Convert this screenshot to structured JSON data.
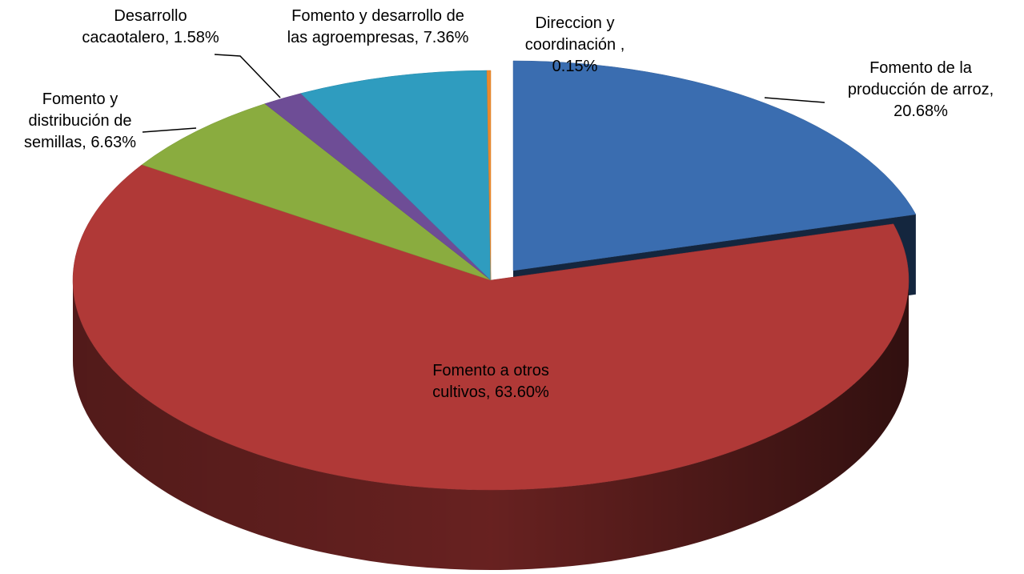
{
  "chart_data": {
    "type": "pie",
    "categories": [
      "Fomento de la producción de arroz,",
      "Fomento a otros cultivos,",
      "Fomento y distribución de semillas,",
      "Desarrollo cacaotalero,",
      "Fomento y desarrollo de las agroempresas,",
      "Direccion y coordinación ,"
    ],
    "values": [
      20.68,
      63.6,
      6.63,
      1.58,
      7.36,
      0.15
    ],
    "value_labels": [
      "20.68%",
      "63.60%",
      "6.63%",
      "1.58%",
      "7.36%",
      "0.15%"
    ],
    "colors": [
      "#3a6db0",
      "#b03937",
      "#8aac3f",
      "#6e4d96",
      "#2f9cbf",
      "#ec8a2c"
    ]
  }
}
